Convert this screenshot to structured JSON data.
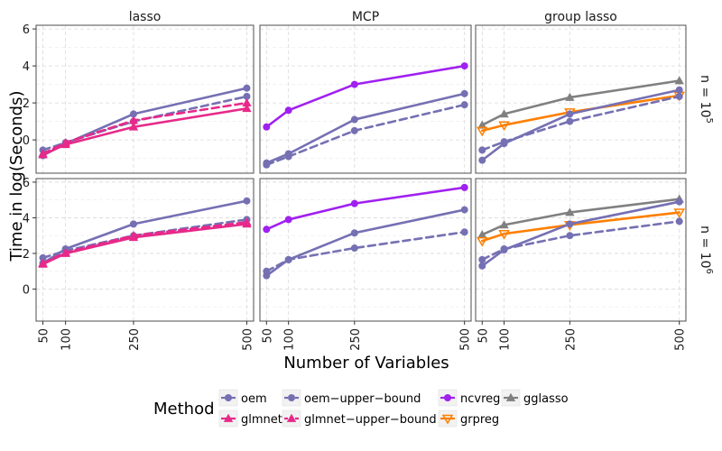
{
  "chart_data": {
    "type": "line",
    "facet_columns": [
      "lasso",
      "MCP",
      "group lasso"
    ],
    "facet_rows": [
      {
        "prefix": "n = 10",
        "exponent": "5"
      },
      {
        "prefix": "n = 10",
        "exponent": "6"
      }
    ],
    "x": [
      50,
      100,
      250,
      500
    ],
    "x_tick_labels": [
      "50",
      "100",
      "250",
      "500"
    ],
    "xlabel": "Number of Variables",
    "ylabel": "Time in log(Seconds)",
    "y_tick_labels": [
      "0",
      "2",
      "4",
      "6"
    ],
    "ylim": [
      -1.8,
      6.2
    ],
    "xlim": [
      35,
      515
    ],
    "legend_title": "Method",
    "methods": [
      {
        "key": "oem",
        "label": "oem",
        "color": "#7570b3",
        "dash": false,
        "marker": "circle"
      },
      {
        "key": "oem_ub",
        "label": "oem−upper−bound",
        "color": "#7570b3",
        "dash": true,
        "marker": "circle"
      },
      {
        "key": "ncvreg",
        "label": "ncvreg",
        "color": "#a020f0",
        "dash": false,
        "marker": "circle"
      },
      {
        "key": "gglasso",
        "label": "gglasso",
        "color": "#808080",
        "dash": false,
        "marker": "triangle"
      },
      {
        "key": "glmnet",
        "label": "glmnet",
        "color": "#e7298a",
        "dash": false,
        "marker": "triangle"
      },
      {
        "key": "glmnet_ub",
        "label": "glmnet−upper−bound",
        "color": "#e7298a",
        "dash": true,
        "marker": "triangle"
      },
      {
        "key": "grpreg",
        "label": "grpreg",
        "color": "#ff7f00",
        "dash": false,
        "marker": "triangle-down"
      }
    ],
    "panels": [
      {
        "row": 0,
        "col": 0,
        "series": [
          {
            "method": "oem",
            "values": [
              -0.85,
              -0.2,
              1.4,
              2.8
            ]
          },
          {
            "method": "oem_ub",
            "values": [
              -0.55,
              -0.15,
              1.0,
              2.35
            ]
          },
          {
            "method": "glmnet",
            "values": [
              -0.8,
              -0.25,
              0.7,
              1.7
            ]
          },
          {
            "method": "glmnet_ub",
            "values": [
              -0.75,
              -0.15,
              1.05,
              2.0
            ]
          }
        ]
      },
      {
        "row": 0,
        "col": 1,
        "series": [
          {
            "method": "ncvreg",
            "values": [
              0.7,
              1.6,
              3.0,
              4.0
            ]
          },
          {
            "method": "oem",
            "values": [
              -1.25,
              -0.75,
              1.1,
              2.5
            ]
          },
          {
            "method": "oem_ub",
            "values": [
              -1.35,
              -0.9,
              0.5,
              1.9
            ]
          }
        ]
      },
      {
        "row": 0,
        "col": 2,
        "series": [
          {
            "method": "gglasso",
            "values": [
              0.8,
              1.4,
              2.3,
              3.2
            ]
          },
          {
            "method": "grpreg",
            "values": [
              0.5,
              0.8,
              1.5,
              2.4
            ]
          },
          {
            "method": "oem",
            "values": [
              -1.1,
              -0.2,
              1.4,
              2.7
            ]
          },
          {
            "method": "oem_ub",
            "values": [
              -0.55,
              -0.1,
              1.0,
              2.35
            ]
          }
        ]
      },
      {
        "row": 1,
        "col": 0,
        "series": [
          {
            "method": "oem",
            "values": [
              1.45,
              2.25,
              3.65,
              4.95
            ]
          },
          {
            "method": "oem_ub",
            "values": [
              1.75,
              2.15,
              3.0,
              3.9
            ]
          },
          {
            "method": "glmnet",
            "values": [
              1.4,
              2.0,
              2.9,
              3.65
            ]
          },
          {
            "method": "glmnet_ub",
            "values": [
              1.45,
              2.05,
              3.0,
              3.75
            ]
          }
        ]
      },
      {
        "row": 1,
        "col": 1,
        "series": [
          {
            "method": "ncvreg",
            "values": [
              3.35,
              3.9,
              4.8,
              5.7
            ]
          },
          {
            "method": "oem",
            "values": [
              0.75,
              1.65,
              3.15,
              4.45
            ]
          },
          {
            "method": "oem_ub",
            "values": [
              1.0,
              1.65,
              2.3,
              3.2
            ]
          }
        ]
      },
      {
        "row": 1,
        "col": 2,
        "series": [
          {
            "method": "gglasso",
            "values": [
              3.05,
              3.6,
              4.3,
              5.05
            ]
          },
          {
            "method": "grpreg",
            "values": [
              2.7,
              3.1,
              3.6,
              4.3
            ]
          },
          {
            "method": "oem",
            "values": [
              1.3,
              2.2,
              3.65,
              4.9
            ]
          },
          {
            "method": "oem_ub",
            "values": [
              1.65,
              2.25,
              3.0,
              3.8
            ]
          }
        ]
      }
    ]
  }
}
